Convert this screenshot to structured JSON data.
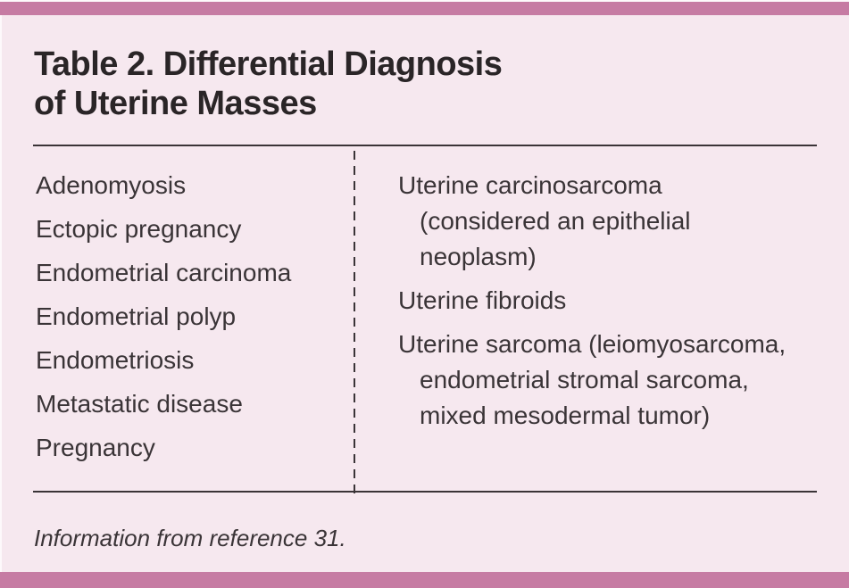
{
  "colors": {
    "accent_bar": "#c67ba3",
    "background": "#f6e8ef",
    "title_text": "#2a2527",
    "body_text": "#3a3437",
    "rule": "#3a3437"
  },
  "table": {
    "title_line1": "Table 2. Differential Diagnosis",
    "title_line2": "of Uterine Masses",
    "left_column": {
      "items": [
        {
          "lines": [
            "Adenomyosis"
          ]
        },
        {
          "lines": [
            "Ectopic pregnancy"
          ]
        },
        {
          "lines": [
            "Endometrial carcinoma"
          ]
        },
        {
          "lines": [
            "Endometrial polyp"
          ]
        },
        {
          "lines": [
            "Endometriosis"
          ]
        },
        {
          "lines": [
            "Metastatic disease"
          ]
        },
        {
          "lines": [
            "Pregnancy"
          ]
        }
      ]
    },
    "right_column": {
      "items": [
        {
          "lines": [
            "Uterine carcinosarcoma",
            "(considered an epithelial",
            "neoplasm)"
          ]
        },
        {
          "lines": [
            "Uterine fibroids"
          ]
        },
        {
          "lines": [
            "Uterine sarcoma (leiomyosarcoma,",
            "endometrial stromal sarcoma,",
            "mixed mesodermal tumor)"
          ]
        }
      ]
    },
    "footnote": "Information from reference 31."
  }
}
